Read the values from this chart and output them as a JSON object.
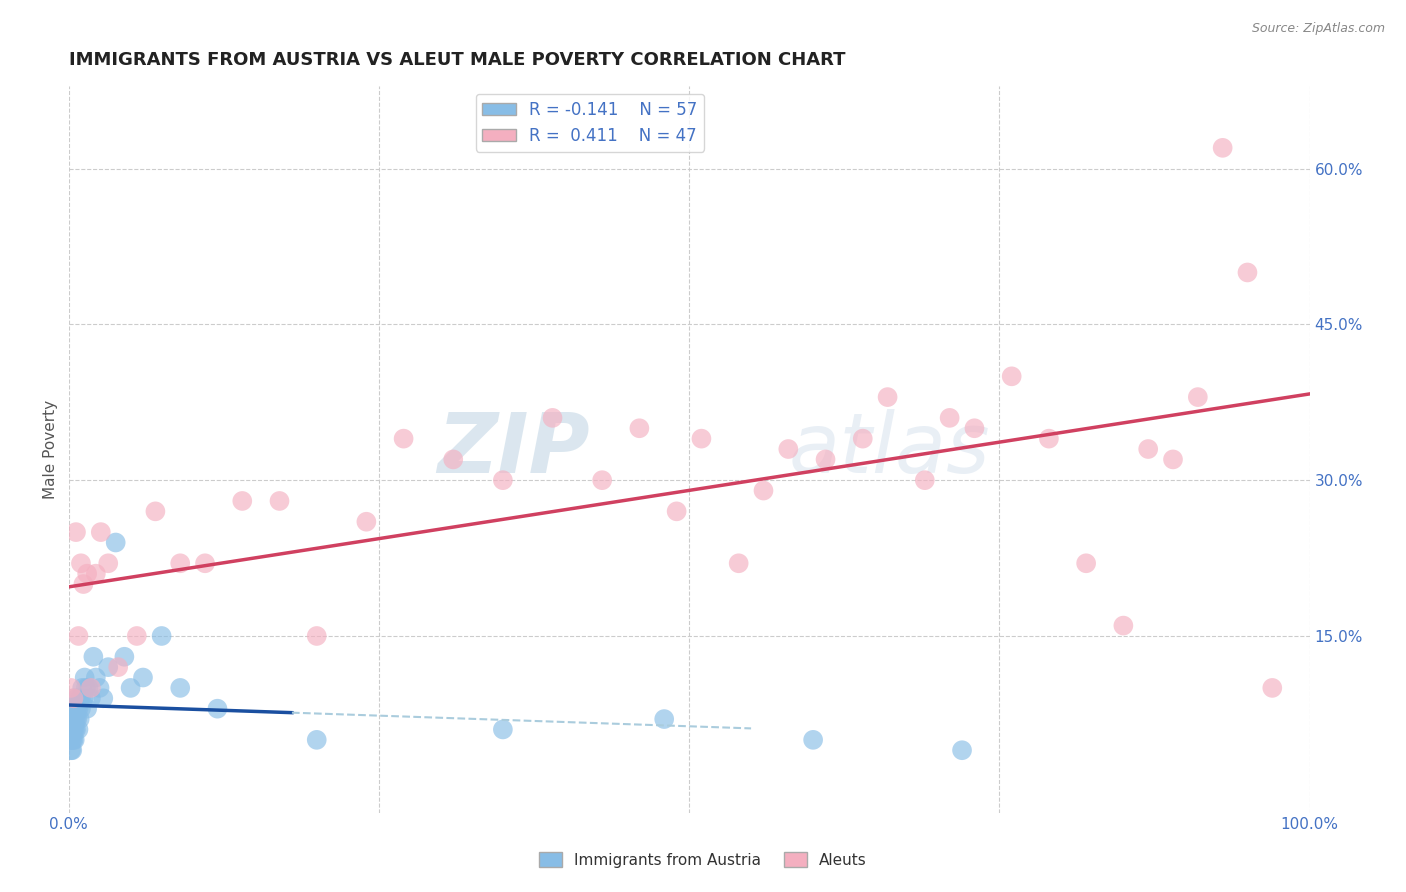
{
  "title": "IMMIGRANTS FROM AUSTRIA VS ALEUT MALE POVERTY CORRELATION CHART",
  "source": "Source: ZipAtlas.com",
  "ylabel": "Male Poverty",
  "xlim": [
    0,
    1.0
  ],
  "ylim": [
    -0.02,
    0.68
  ],
  "right_yticks": [
    0.15,
    0.3,
    0.45,
    0.6
  ],
  "right_yticklabels": [
    "15.0%",
    "30.0%",
    "45.0%",
    "60.0%"
  ],
  "legend_R1": "R = -0.141",
  "legend_N1": "N = 57",
  "legend_R2": "R =  0.411",
  "legend_N2": "N = 47",
  "blue_color": "#88bde6",
  "pink_color": "#f4afc0",
  "blue_line_color": "#1a4fa0",
  "pink_line_color": "#d04060",
  "dashed_line_color": "#aaccdd",
  "watermark_zip": "ZIP",
  "watermark_atlas": "atlas",
  "background_color": "#ffffff",
  "grid_color": "#cccccc",
  "blue_x": [
    0.001,
    0.001,
    0.001,
    0.002,
    0.002,
    0.002,
    0.002,
    0.002,
    0.003,
    0.003,
    0.003,
    0.003,
    0.003,
    0.004,
    0.004,
    0.004,
    0.004,
    0.005,
    0.005,
    0.005,
    0.005,
    0.006,
    0.006,
    0.006,
    0.007,
    0.007,
    0.007,
    0.008,
    0.008,
    0.009,
    0.009,
    0.01,
    0.01,
    0.011,
    0.012,
    0.013,
    0.014,
    0.015,
    0.016,
    0.018,
    0.02,
    0.022,
    0.025,
    0.028,
    0.032,
    0.038,
    0.045,
    0.05,
    0.06,
    0.075,
    0.09,
    0.12,
    0.2,
    0.35,
    0.48,
    0.6,
    0.72
  ],
  "blue_y": [
    0.05,
    0.06,
    0.07,
    0.04,
    0.05,
    0.06,
    0.07,
    0.08,
    0.04,
    0.05,
    0.06,
    0.07,
    0.08,
    0.05,
    0.06,
    0.07,
    0.09,
    0.05,
    0.06,
    0.07,
    0.08,
    0.06,
    0.07,
    0.08,
    0.07,
    0.08,
    0.09,
    0.06,
    0.08,
    0.07,
    0.09,
    0.08,
    0.09,
    0.1,
    0.09,
    0.11,
    0.1,
    0.08,
    0.1,
    0.09,
    0.13,
    0.11,
    0.1,
    0.09,
    0.12,
    0.24,
    0.13,
    0.1,
    0.11,
    0.15,
    0.1,
    0.08,
    0.05,
    0.06,
    0.07,
    0.05,
    0.04
  ],
  "pink_x": [
    0.002,
    0.004,
    0.006,
    0.008,
    0.01,
    0.012,
    0.015,
    0.018,
    0.022,
    0.026,
    0.032,
    0.04,
    0.055,
    0.07,
    0.09,
    0.11,
    0.14,
    0.17,
    0.2,
    0.24,
    0.27,
    0.31,
    0.35,
    0.39,
    0.43,
    0.46,
    0.49,
    0.51,
    0.54,
    0.56,
    0.58,
    0.61,
    0.64,
    0.66,
    0.69,
    0.71,
    0.73,
    0.76,
    0.79,
    0.82,
    0.85,
    0.87,
    0.89,
    0.91,
    0.93,
    0.95,
    0.97
  ],
  "pink_y": [
    0.1,
    0.09,
    0.25,
    0.15,
    0.22,
    0.2,
    0.21,
    0.1,
    0.21,
    0.25,
    0.22,
    0.12,
    0.15,
    0.27,
    0.22,
    0.22,
    0.28,
    0.28,
    0.15,
    0.26,
    0.34,
    0.32,
    0.3,
    0.36,
    0.3,
    0.35,
    0.27,
    0.34,
    0.22,
    0.29,
    0.33,
    0.32,
    0.34,
    0.38,
    0.3,
    0.36,
    0.35,
    0.4,
    0.34,
    0.22,
    0.16,
    0.33,
    0.32,
    0.38,
    0.62,
    0.5,
    0.1
  ],
  "title_fontsize": 13,
  "label_fontsize": 11,
  "tick_fontsize": 11,
  "legend_fontsize": 12
}
